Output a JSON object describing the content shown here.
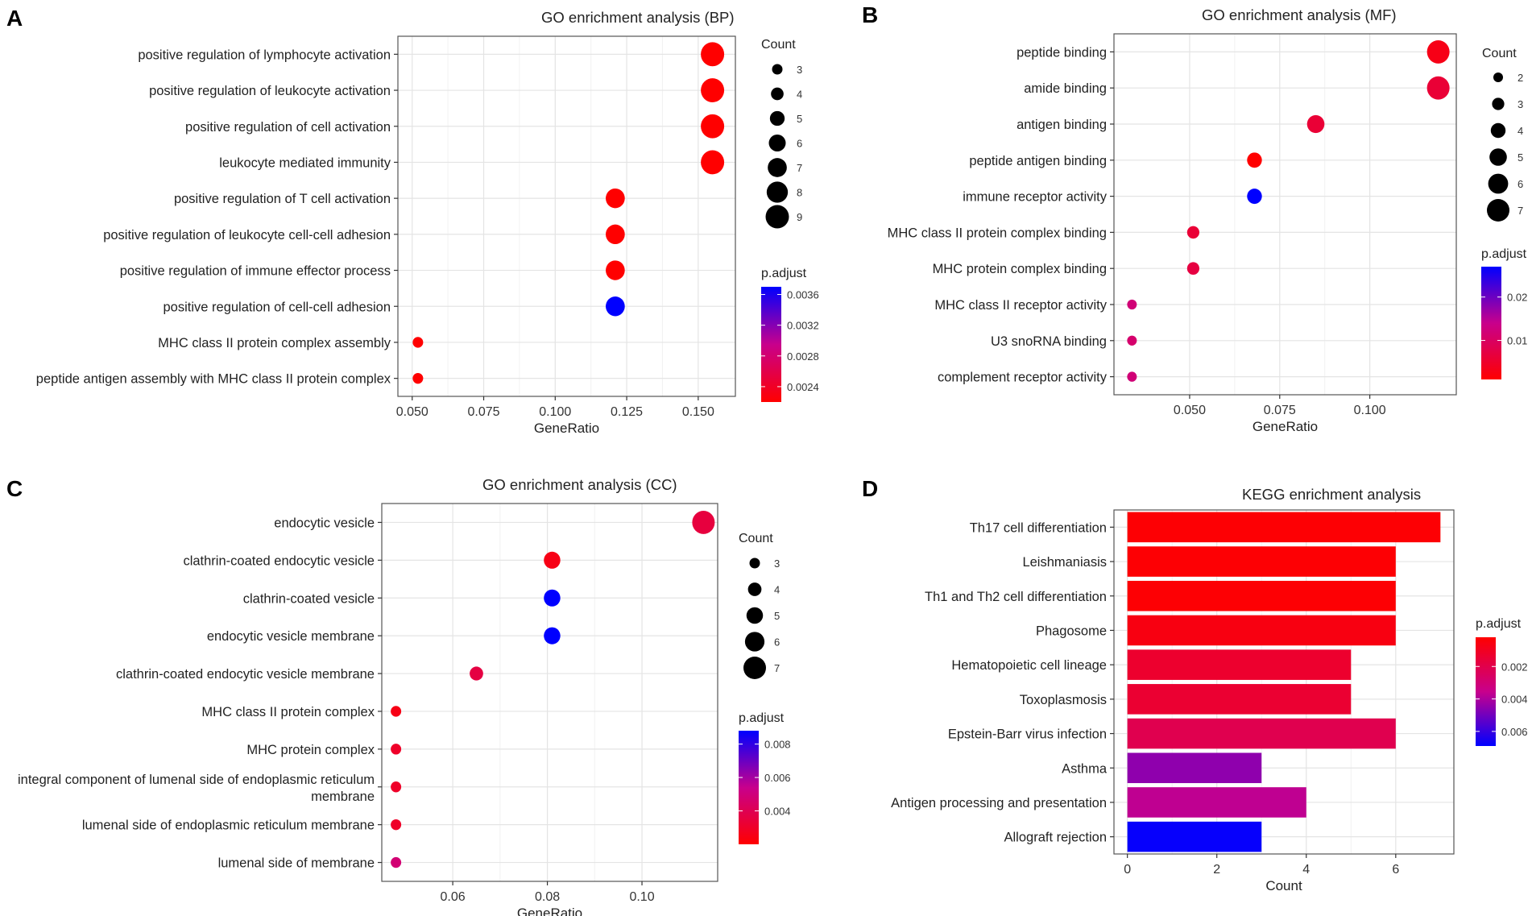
{
  "chart_data": [
    {
      "panel": "A",
      "type": "scatter",
      "title": "GO enrichment analysis (BP)",
      "xlabel": "GeneRatio",
      "xlim": [
        0.045,
        0.163
      ],
      "xticks": [
        0.05,
        0.075,
        0.1,
        0.125,
        0.15
      ],
      "xtick_labels": [
        "0.050",
        "0.075",
        "0.100",
        "0.125",
        "0.150"
      ],
      "categories": [
        "positive regulation of lymphocyte activation",
        "positive regulation of leukocyte activation",
        "positive regulation of cell activation",
        "leukocyte mediated immunity",
        "positive regulation of T cell activation",
        "positive regulation of leukocyte cell-cell adhesion",
        "positive regulation of immune effector process",
        "positive regulation of cell-cell adhesion",
        "MHC class II protein complex assembly",
        "peptide antigen assembly with MHC class II protein complex"
      ],
      "x": [
        0.155,
        0.155,
        0.155,
        0.155,
        0.121,
        0.121,
        0.121,
        0.121,
        0.052,
        0.052
      ],
      "count": [
        9,
        9,
        9,
        9,
        7,
        7,
        7,
        7,
        3,
        3
      ],
      "p_adjust": [
        0.0022,
        0.0022,
        0.0022,
        0.0022,
        0.0022,
        0.0022,
        0.0022,
        0.0037,
        0.0022,
        0.0022
      ],
      "size_legend": {
        "title": "Count",
        "values": [
          3,
          4,
          5,
          6,
          7,
          8,
          9
        ],
        "labels": [
          "3",
          "4",
          "5",
          "6",
          "7",
          "8",
          "9"
        ]
      },
      "color_legend": {
        "title": "p.adjust",
        "min": 0.0022,
        "max": 0.0037,
        "ticks": [
          0.0024,
          0.0028,
          0.0032,
          0.0036
        ],
        "tick_labels": [
          "0.0024",
          "0.0028",
          "0.0032",
          "0.0036"
        ],
        "low_color": "#ff0000",
        "high_color": "#0000ff"
      }
    },
    {
      "panel": "B",
      "type": "scatter",
      "title": "GO enrichment analysis (MF)",
      "xlabel": "GeneRatio",
      "xlim": [
        0.029,
        0.124
      ],
      "xticks": [
        0.05,
        0.075,
        0.1
      ],
      "xtick_labels": [
        "0.050",
        "0.075",
        "0.100"
      ],
      "categories": [
        "peptide binding",
        "amide binding",
        "antigen binding",
        "peptide antigen binding",
        "immune receptor activity",
        "MHC class II protein complex binding",
        "MHC protein complex binding",
        "MHC class II receptor activity",
        "U3 snoRNA binding",
        "complement receptor activity"
      ],
      "x": [
        0.119,
        0.119,
        0.085,
        0.068,
        0.068,
        0.051,
        0.051,
        0.034,
        0.034,
        0.034
      ],
      "count": [
        7,
        7,
        5,
        4,
        4,
        3,
        3,
        2,
        2,
        2
      ],
      "p_adjust": [
        0.003,
        0.006,
        0.006,
        0.001,
        0.027,
        0.006,
        0.007,
        0.012,
        0.011,
        0.012
      ],
      "size_legend": {
        "title": "Count",
        "values": [
          2,
          3,
          4,
          5,
          6,
          7
        ],
        "labels": [
          "2",
          "3",
          "4",
          "5",
          "6",
          "7"
        ]
      },
      "color_legend": {
        "title": "p.adjust",
        "min": 0.001,
        "max": 0.027,
        "ticks": [
          0.01,
          0.02
        ],
        "tick_labels": [
          "0.01",
          "0.02"
        ],
        "low_color": "#ff0000",
        "high_color": "#0000ff"
      }
    },
    {
      "panel": "C",
      "type": "scatter",
      "title": "GO enrichment analysis (CC)",
      "xlabel": "GeneRatio",
      "xlim": [
        0.045,
        0.116
      ],
      "xticks": [
        0.06,
        0.08,
        0.1
      ],
      "xtick_labels": [
        "0.06",
        "0.08",
        "0.10"
      ],
      "categories": [
        "endocytic vesicle",
        "clathrin-coated endocytic vesicle",
        "clathrin-coated vesicle",
        "endocytic vesicle membrane",
        "clathrin-coated endocytic vesicle membrane",
        "MHC class II protein complex",
        "MHC protein complex",
        "integral component of lumenal side of endoplasmic reticulum membrane",
        "lumenal side of endoplasmic reticulum membrane",
        "lumenal side of membrane"
      ],
      "category_lines": [
        [
          "endocytic vesicle"
        ],
        [
          "clathrin-coated endocytic vesicle"
        ],
        [
          "clathrin-coated vesicle"
        ],
        [
          "endocytic vesicle membrane"
        ],
        [
          "clathrin-coated endocytic vesicle membrane"
        ],
        [
          "MHC class II protein complex"
        ],
        [
          "MHC protein complex"
        ],
        [
          "integral component of lumenal side of endoplasmic reticulum",
          "membrane"
        ],
        [
          "lumenal side of endoplasmic reticulum membrane"
        ],
        [
          "lumenal side of membrane"
        ]
      ],
      "x": [
        0.113,
        0.081,
        0.081,
        0.081,
        0.065,
        0.048,
        0.048,
        0.048,
        0.048,
        0.048
      ],
      "count": [
        7,
        5,
        5,
        5,
        4,
        3,
        3,
        3,
        3,
        3
      ],
      "p_adjust": [
        0.0035,
        0.0025,
        0.0088,
        0.0088,
        0.0036,
        0.0025,
        0.003,
        0.003,
        0.003,
        0.0048
      ],
      "size_legend": {
        "title": "Count",
        "values": [
          3,
          4,
          5,
          6,
          7
        ],
        "labels": [
          "3",
          "4",
          "5",
          "6",
          "7"
        ]
      },
      "color_legend": {
        "title": "p.adjust",
        "min": 0.002,
        "max": 0.0088,
        "ticks": [
          0.004,
          0.006,
          0.008
        ],
        "tick_labels": [
          "0.004",
          "0.006",
          "0.008"
        ],
        "low_color": "#ff0000",
        "high_color": "#0000ff"
      }
    },
    {
      "panel": "D",
      "type": "bar",
      "orientation": "horizontal",
      "title": "KEGG enrichment analysis",
      "xlabel": "Count",
      "xlim": [
        -0.3,
        7.3
      ],
      "xticks": [
        0,
        2,
        4,
        6
      ],
      "xtick_labels": [
        "0",
        "2",
        "4",
        "6"
      ],
      "categories": [
        "Th17 cell differentiation",
        "Leishmaniasis",
        "Th1 and Th2 cell differentiation",
        "Phagosome",
        "Hematopoietic cell lineage",
        "Toxoplasmosis",
        "Epstein-Barr virus infection",
        "Asthma",
        "Antigen processing and presentation",
        "Allograft rejection"
      ],
      "values": [
        7,
        6,
        6,
        6,
        5,
        5,
        6,
        3,
        4,
        3
      ],
      "p_adjust": [
        0.0003,
        0.0003,
        0.0003,
        0.0006,
        0.0013,
        0.0014,
        0.0021,
        0.0045,
        0.0037,
        0.0068
      ],
      "color_legend": {
        "title": "p.adjust",
        "min": 0.0002,
        "max": 0.0069,
        "ticks": [
          0.002,
          0.004,
          0.006
        ],
        "tick_labels": [
          "0.002",
          "0.004",
          "0.006"
        ],
        "low_color": "#ff0000",
        "high_color": "#0000ff",
        "reversed": true
      }
    }
  ]
}
